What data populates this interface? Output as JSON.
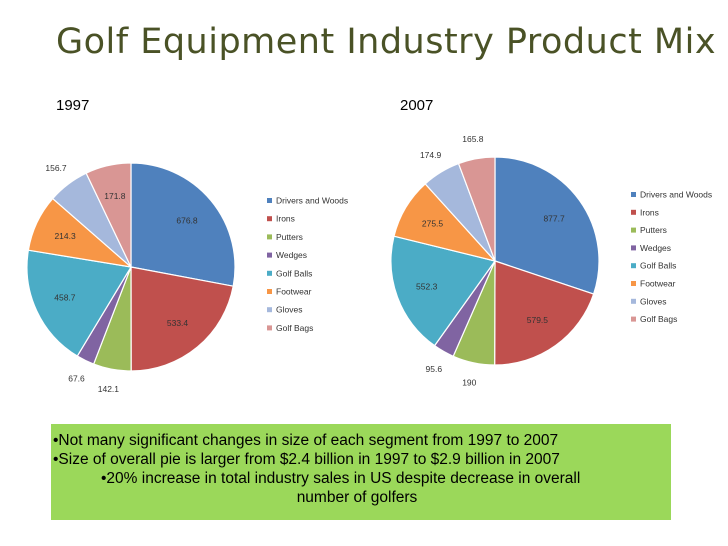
{
  "slide": {
    "title": "Golf Equipment Industry Product Mix"
  },
  "colors": {
    "Drivers and Woods": "#4f81bd",
    "Irons": "#c0504d",
    "Putters": "#9bbb59",
    "Wedges": "#8064a2",
    "Golf Balls": "#4bacc6",
    "Footwear": "#f79646",
    "Gloves": "#a5b8dc",
    "Golf Bags": "#d99694"
  },
  "chart_data": [
    {
      "type": "pie",
      "title": "1997",
      "categories": [
        "Drivers and Woods",
        "Irons",
        "Putters",
        "Wedges",
        "Golf Balls",
        "Footwear",
        "Gloves",
        "Golf Bags"
      ],
      "values": [
        676.8,
        533.4,
        142.1,
        67.6,
        458.7,
        214.3,
        156.7,
        171.8
      ],
      "data_labels": [
        "676.8",
        "533.4",
        "142.1",
        "67.6",
        "458.7",
        "214.3",
        "156.7",
        "171.8"
      ],
      "legend": "right"
    },
    {
      "type": "pie",
      "title": "2007",
      "categories": [
        "Drivers and Woods",
        "Irons",
        "Putters",
        "Wedges",
        "Golf Balls",
        "Footwear",
        "Gloves",
        "Golf Bags"
      ],
      "values": [
        877.7,
        579.5,
        190,
        95.6,
        552.3,
        275.5,
        174.9,
        165.8
      ],
      "data_labels": [
        "877.7",
        "579.5",
        "190",
        "95.6",
        "552.3",
        "275.5",
        "174.9",
        "165.8"
      ],
      "legend": "right"
    }
  ],
  "bullets": [
    "•Not many significant changes in size of each segment from 1997 to 2007",
    "•Size of overall pie is larger from $2.4 billion in 1997 to $2.9 billion in 2007",
    "•20% increase in total industry sales in US despite decrease in overall",
    "number of golfers"
  ]
}
